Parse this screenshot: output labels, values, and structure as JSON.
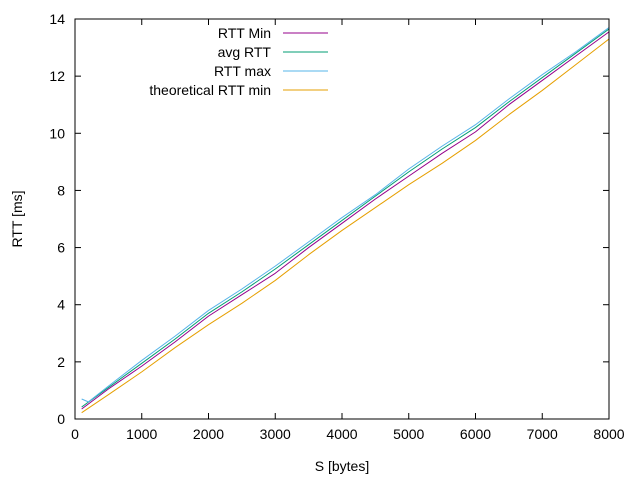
{
  "chart_data": {
    "type": "line",
    "title": "",
    "xlabel": "S [bytes]",
    "ylabel": "RTT [ms]",
    "xlim": [
      0,
      8000
    ],
    "ylim": [
      0,
      14
    ],
    "xticks": [
      0,
      1000,
      2000,
      3000,
      4000,
      5000,
      6000,
      7000,
      8000
    ],
    "yticks": [
      0,
      2,
      4,
      6,
      8,
      10,
      12,
      14
    ],
    "grid": false,
    "legend_position": "top-left-inside",
    "series": [
      {
        "name": "RTT Min",
        "color": "#94008b",
        "x": [
          100,
          500,
          1000,
          1500,
          2000,
          2500,
          3000,
          3500,
          4000,
          4500,
          5000,
          5500,
          6000,
          6500,
          7000,
          7500,
          8000
        ],
        "y": [
          0.35,
          1.05,
          1.85,
          2.7,
          3.6,
          4.35,
          5.1,
          6.0,
          6.85,
          7.7,
          8.5,
          9.3,
          10.05,
          11.0,
          11.85,
          12.7,
          13.55
        ]
      },
      {
        "name": "avg RTT",
        "color": "#009e73",
        "x": [
          100,
          500,
          1000,
          1500,
          2000,
          2500,
          3000,
          3500,
          4000,
          4500,
          5000,
          5500,
          6000,
          6500,
          7000,
          7500,
          8000
        ],
        "y": [
          0.42,
          1.1,
          1.95,
          2.8,
          3.7,
          4.45,
          5.25,
          6.1,
          6.95,
          7.8,
          8.65,
          9.45,
          10.2,
          11.1,
          11.95,
          12.8,
          13.65
        ]
      },
      {
        "name": "RTT max",
        "color": "#56b4e9",
        "x": [
          100,
          200,
          500,
          1000,
          1500,
          2000,
          2500,
          3000,
          3500,
          4000,
          4500,
          5000,
          5500,
          6000,
          6500,
          7000,
          7500,
          8000
        ],
        "y": [
          0.7,
          0.6,
          1.15,
          2.05,
          2.9,
          3.8,
          4.55,
          5.35,
          6.2,
          7.05,
          7.85,
          8.75,
          9.55,
          10.3,
          11.2,
          12.05,
          12.85,
          13.7
        ]
      },
      {
        "name": "theoretical RTT min",
        "color": "#e69f00",
        "x": [
          100,
          500,
          1000,
          1500,
          2000,
          2500,
          3000,
          3500,
          4000,
          4500,
          5000,
          5500,
          6000,
          6500,
          7000,
          7500,
          8000
        ],
        "y": [
          0.22,
          0.85,
          1.65,
          2.5,
          3.3,
          4.05,
          4.85,
          5.75,
          6.6,
          7.4,
          8.2,
          8.95,
          9.75,
          10.65,
          11.5,
          12.4,
          13.3
        ]
      }
    ]
  }
}
